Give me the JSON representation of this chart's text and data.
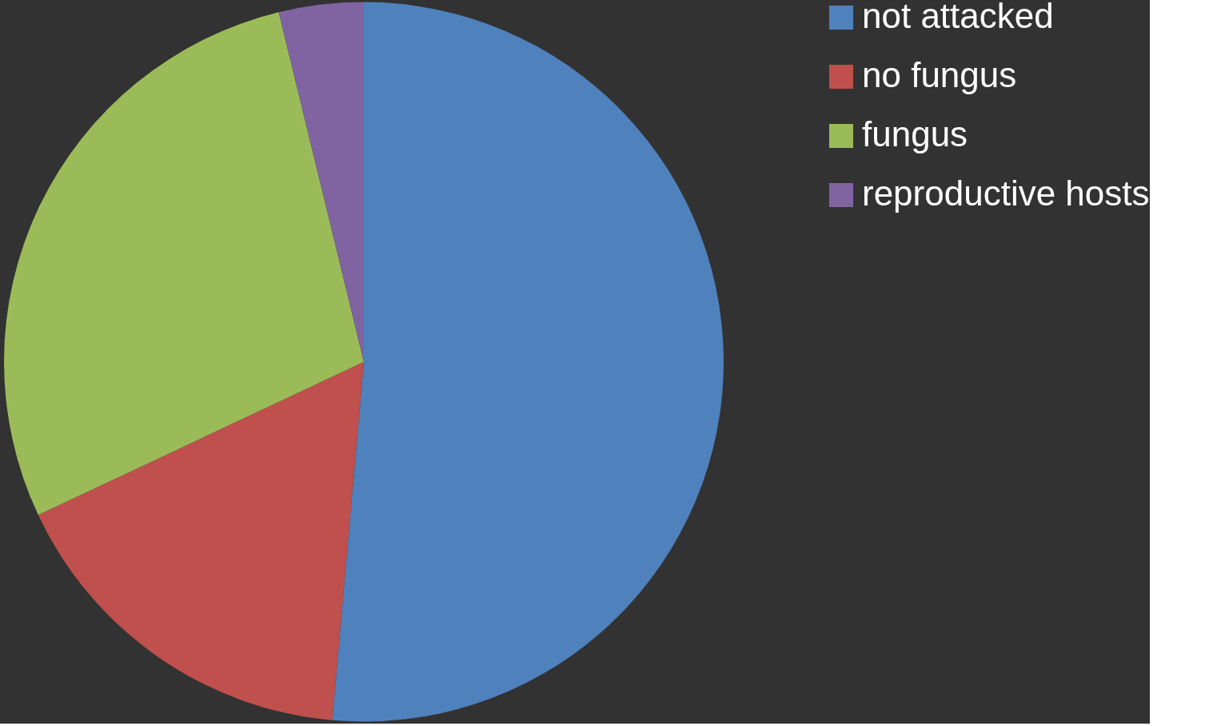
{
  "chart_data": {
    "type": "pie",
    "categories": [
      "not attacked",
      "no fungus",
      "fungus",
      "reproductive hosts"
    ],
    "values": [
      51.4,
      16.6,
      28.2,
      3.8
    ],
    "colors": [
      "#4f81bd",
      "#c0504d",
      "#9bbb59",
      "#8064a2"
    ],
    "legend": "right"
  }
}
